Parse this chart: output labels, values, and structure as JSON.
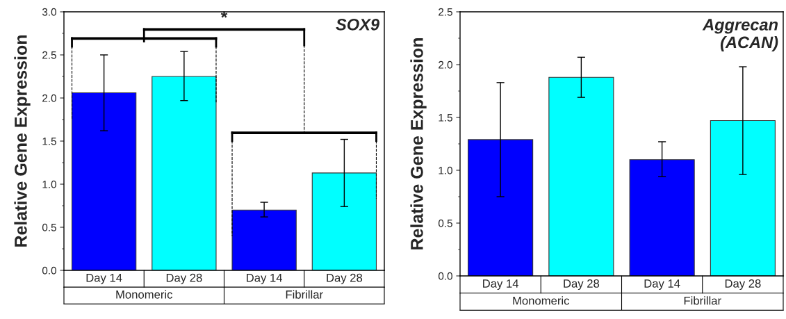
{
  "chart_data": [
    {
      "type": "bar",
      "title": "SOX9",
      "ylabel": "Relative Gene Expression",
      "categories": [
        "Day 14",
        "Day 28",
        "Day 14",
        "Day 28"
      ],
      "values": [
        2.06,
        2.25,
        0.7,
        1.13
      ],
      "colors": [
        "#0000ff",
        "#00ffff",
        "#0000ff",
        "#00ffff"
      ],
      "errors": [
        [
          1.62,
          2.5
        ],
        [
          1.97,
          2.54
        ],
        [
          0.62,
          0.79
        ],
        [
          0.74,
          1.52
        ]
      ],
      "ylim": [
        0,
        3.0
      ],
      "yticks": [
        {
          "value": 0,
          "label": "0.0"
        },
        {
          "value": 0.5,
          "label": "0.5"
        },
        {
          "value": 1.0,
          "label": "1.0"
        },
        {
          "value": 1.5,
          "label": "1.5"
        },
        {
          "value": 2.0,
          "label": "2.0"
        },
        {
          "value": 2.5,
          "label": "2.5"
        },
        {
          "value": 3.0,
          "label": "3.0"
        }
      ],
      "annotations": [
        "*",
        "Monomeric",
        "Fibrillar"
      ]
    },
    {
      "type": "bar",
      "title": "Aggrecan\n(ACAN)",
      "ylabel": "Relative Gene Expression",
      "categories": [
        "Day 14",
        "Day 28",
        "Day 14",
        "Day 28"
      ],
      "values": [
        1.29,
        1.88,
        1.1,
        1.47
      ],
      "colors": [
        "#0000ff",
        "#00ffff",
        "#0000ff",
        "#00ffff"
      ],
      "errors": [
        [
          0.75,
          1.83
        ],
        [
          1.69,
          2.07
        ],
        [
          0.94,
          1.27
        ],
        [
          0.96,
          1.98
        ]
      ],
      "ylim": [
        0,
        2.5
      ],
      "yticks": [
        {
          "value": 0,
          "label": "0.0"
        },
        {
          "value": 0.5,
          "label": "0.5"
        },
        {
          "value": 1.0,
          "label": "1.0"
        },
        {
          "value": 1.5,
          "label": "1.5"
        },
        {
          "value": 2.0,
          "label": "2.0"
        },
        {
          "value": 2.5,
          "label": "2.5"
        }
      ],
      "annotations": [
        "Monomeric",
        "Fibrillar"
      ]
    }
  ]
}
